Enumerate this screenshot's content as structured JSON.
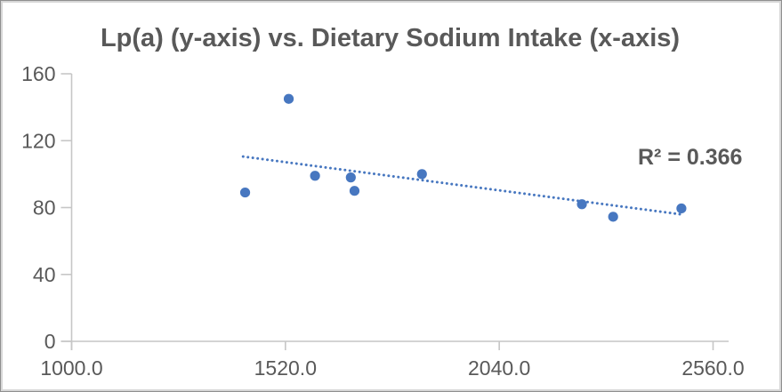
{
  "chart_data": {
    "type": "scatter",
    "title": "Lp(a) (y-axis) vs. Dietary Sodium Intake (x-axis)",
    "annotation": "R² = 0.366",
    "xlabel": "Dietary Sodium Intake",
    "ylabel": "Lp(a)",
    "xlim": [
      1000,
      2560
    ],
    "ylim": [
      0,
      160
    ],
    "grid": false,
    "legend": "none",
    "x_ticks": [
      {
        "value": 1000,
        "label": "1000.0"
      },
      {
        "value": 1520,
        "label": "1520.0"
      },
      {
        "value": 2040,
        "label": "2040.0"
      },
      {
        "value": 2560,
        "label": "2560.0"
      }
    ],
    "y_ticks": [
      {
        "value": 0,
        "label": "0"
      },
      {
        "value": 40,
        "label": "40"
      },
      {
        "value": 80,
        "label": "80"
      },
      {
        "value": 120,
        "label": "120"
      },
      {
        "value": 160,
        "label": "160"
      }
    ],
    "points": [
      {
        "x": 1422,
        "y": 89
      },
      {
        "x": 1528,
        "y": 145
      },
      {
        "x": 1592,
        "y": 99
      },
      {
        "x": 1679,
        "y": 98
      },
      {
        "x": 1688,
        "y": 90
      },
      {
        "x": 1852,
        "y": 100
      },
      {
        "x": 2241,
        "y": 82
      },
      {
        "x": 2317,
        "y": 74.5
      },
      {
        "x": 2483,
        "y": 79.5
      }
    ],
    "trendline": {
      "style": "dotted",
      "x1": 1417,
      "y1": 110.5,
      "x2": 2480,
      "y2": 76,
      "r_squared": 0.366
    },
    "colors": {
      "marker": "#4777C0",
      "trendline": "#4777C0",
      "axis_line": "#c6c6c6",
      "text": "#595959"
    }
  }
}
